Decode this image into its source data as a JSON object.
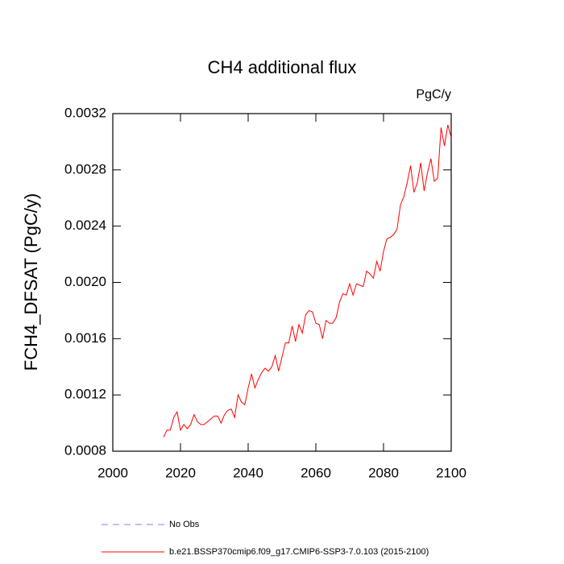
{
  "chart_data": {
    "type": "line",
    "title": "CH4 additional flux",
    "units": "PgC/y",
    "y_label": "FCH4_DFSAT  (PgC/y)",
    "x": [
      2015,
      2016,
      2017,
      2018,
      2019,
      2020,
      2021,
      2022,
      2023,
      2024,
      2025,
      2026,
      2027,
      2028,
      2029,
      2030,
      2031,
      2032,
      2033,
      2034,
      2035,
      2036,
      2037,
      2038,
      2039,
      2040,
      2041,
      2042,
      2043,
      2044,
      2045,
      2046,
      2047,
      2048,
      2049,
      2050,
      2051,
      2052,
      2053,
      2054,
      2055,
      2056,
      2057,
      2058,
      2059,
      2060,
      2061,
      2062,
      2063,
      2064,
      2065,
      2066,
      2067,
      2068,
      2069,
      2070,
      2071,
      2072,
      2073,
      2074,
      2075,
      2076,
      2077,
      2078,
      2079,
      2080,
      2081,
      2082,
      2083,
      2084,
      2085,
      2086,
      2087,
      2088,
      2089,
      2090,
      2091,
      2092,
      2093,
      2094,
      2095,
      2096,
      2097,
      2098,
      2099,
      2100
    ],
    "series": [
      {
        "name": "b.e21.BSSP370cmip6.f09_g17.CMIP6-SSP3-7.0.103 (2015-2100)",
        "color": "#ff0000",
        "values": [
          0.0009,
          0.00095,
          0.00095,
          0.00104,
          0.00108,
          0.00095,
          0.00099,
          0.00096,
          0.00099,
          0.00106,
          0.00101,
          0.00099,
          0.00099,
          0.00101,
          0.00103,
          0.00105,
          0.00105,
          0.001,
          0.00106,
          0.00109,
          0.0011,
          0.00104,
          0.0012,
          0.00115,
          0.00113,
          0.00125,
          0.00135,
          0.00125,
          0.00131,
          0.00136,
          0.00139,
          0.00137,
          0.0014,
          0.00148,
          0.00137,
          0.00147,
          0.00157,
          0.00157,
          0.00169,
          0.00158,
          0.0017,
          0.00164,
          0.00177,
          0.0018,
          0.00179,
          0.00171,
          0.0017,
          0.0016,
          0.00173,
          0.00171,
          0.00171,
          0.00175,
          0.00186,
          0.00192,
          0.00191,
          0.00199,
          0.00191,
          0.00199,
          0.00198,
          0.00197,
          0.00208,
          0.00206,
          0.00203,
          0.00215,
          0.00208,
          0.00222,
          0.00231,
          0.00232,
          0.00234,
          0.00238,
          0.00255,
          0.00261,
          0.00271,
          0.00283,
          0.00264,
          0.00271,
          0.00285,
          0.00265,
          0.00278,
          0.00288,
          0.00272,
          0.00274,
          0.0031,
          0.00297,
          0.00312,
          0.00303
        ]
      }
    ],
    "reference": {
      "name": "No Obs",
      "color": "#8080ff",
      "dashed": true
    },
    "xlim": [
      2000,
      2100
    ],
    "xticks": [
      2000,
      2020,
      2040,
      2060,
      2080,
      2100
    ],
    "ylim": [
      0.0008,
      0.0032
    ],
    "yticks": [
      0.0008,
      0.0012,
      0.0016,
      {
        "value": 0.002,
        "label": "0.0020"
      },
      0.0024,
      0.0028,
      0.0032
    ]
  }
}
